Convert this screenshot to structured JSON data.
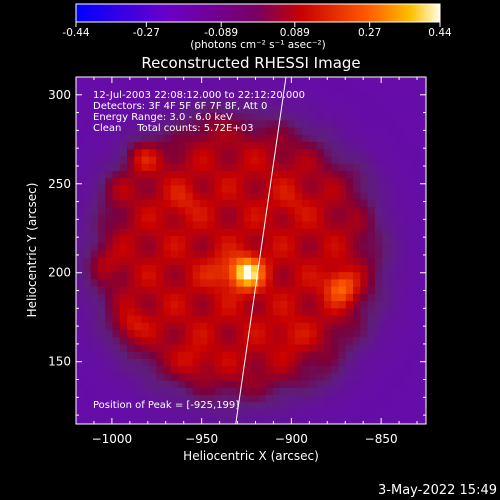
{
  "colorbar": {
    "tick_labels": [
      "-0.44",
      "-0.27",
      "-0.089",
      "0.089",
      "0.27",
      "0.44"
    ],
    "ticks": [
      -0.44,
      -0.27,
      -0.089,
      0.089,
      0.27,
      0.44
    ],
    "range": [
      -0.44,
      0.44
    ],
    "unit_label": "(photons cm⁻² s⁻¹ asec⁻²)"
  },
  "chart_data": {
    "type": "heatmap",
    "title": "Reconstructed RHESSI Image",
    "xlabel": "Heliocentric X (arcsec)",
    "ylabel": "Heliocentric Y (arcsec)",
    "xlim": [
      -1020,
      -825
    ],
    "ylim": [
      115,
      310
    ],
    "xticks": [
      -1000,
      -950,
      -900,
      -850
    ],
    "xtick_labels": [
      "−1000",
      "−950",
      "−900",
      "−850"
    ],
    "yticks": [
      150,
      200,
      250,
      300
    ],
    "ytick_labels": [
      "150",
      "200",
      "250",
      "300"
    ],
    "annotations": [
      "12-Jul-2003 22:08:12.000 to 22:12:20.000",
      "Detectors: 3F 4F 5F 6F 7F 8F, Att 0",
      "Energy Range: 3.0 - 6.0 keV",
      "Clean     Total counts: 5.72E+03",
      "Position of Peak = [-925,199]"
    ],
    "peak": {
      "x": -925,
      "y": 199
    },
    "limb_line": [
      [
        -931,
        115
      ],
      [
        -903,
        310
      ]
    ],
    "sources": [
      {
        "x": -925,
        "y": 200,
        "value": 0.44
      },
      {
        "x": -872,
        "y": 192,
        "value": 0.3
      },
      {
        "x": -983,
        "y": 265,
        "value": 0.26
      },
      {
        "x": -998,
        "y": 248,
        "value": 0.18
      },
      {
        "x": -960,
        "y": 240,
        "value": 0.16
      },
      {
        "x": -945,
        "y": 285,
        "value": 0.15
      },
      {
        "x": -990,
        "y": 170,
        "value": 0.2
      },
      {
        "x": -955,
        "y": 150,
        "value": 0.16
      },
      {
        "x": -900,
        "y": 240,
        "value": 0.14
      },
      {
        "x": -860,
        "y": 255,
        "value": 0.12
      },
      {
        "x": -900,
        "y": 165,
        "value": 0.15
      },
      {
        "x": -940,
        "y": 200,
        "value": 0.18
      },
      {
        "x": -880,
        "y": 140,
        "value": 0.12
      },
      {
        "x": -1005,
        "y": 205,
        "value": 0.17
      }
    ],
    "background": {
      "disk_center": {
        "x": -930,
        "y": 208
      },
      "disk_radius": 78,
      "disk_level": 0.09,
      "outside_level": -0.16
    }
  },
  "footer": {
    "timestamp": "3-May-2022 15:49"
  }
}
